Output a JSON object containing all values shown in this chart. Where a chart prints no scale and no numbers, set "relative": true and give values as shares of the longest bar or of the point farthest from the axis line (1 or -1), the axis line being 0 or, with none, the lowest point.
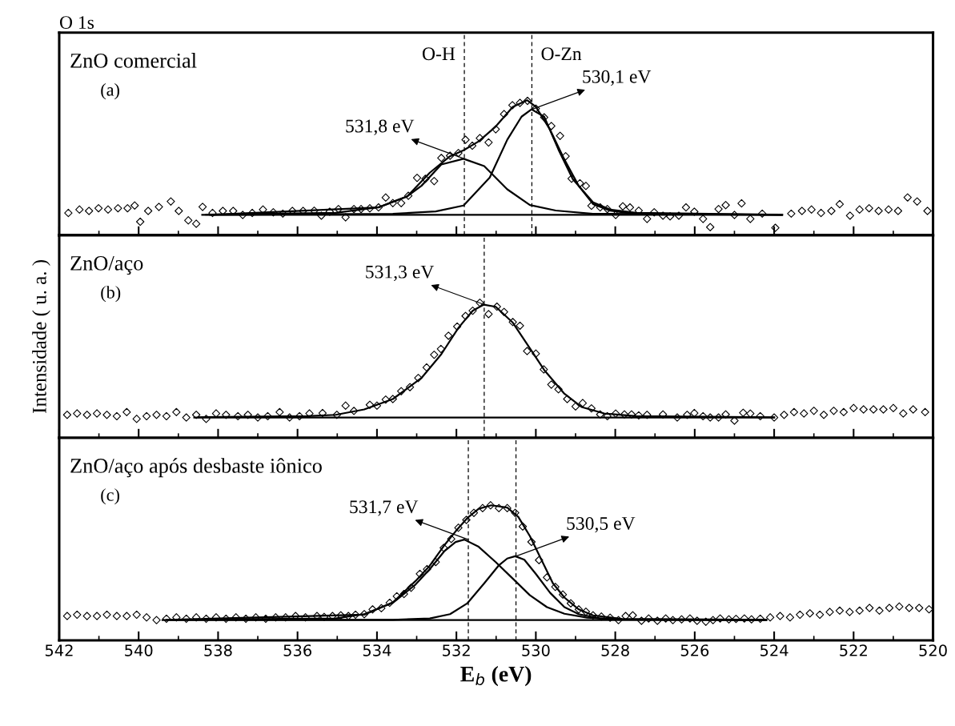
{
  "chart_data": [
    {
      "type": "line",
      "relative": true,
      "title": "O 1s",
      "xlim": [
        542,
        520
      ],
      "xticks": [
        542,
        540,
        538,
        536,
        534,
        532,
        530,
        528,
        526,
        524,
        522,
        520
      ],
      "tick_labels": false,
      "series": [
        {
          "type": "scatter",
          "marker": "diamond",
          "color": "#000000",
          "x": [
            541.77,
            541.49,
            541.25,
            541.01,
            540.77,
            540.52,
            540.28,
            540.1,
            539.96,
            539.76,
            539.49,
            539.19,
            538.99,
            538.75,
            538.55,
            538.39,
            538.14,
            537.88,
            537.62,
            537.38,
            537.14,
            536.87,
            536.61,
            536.37,
            536.13,
            535.86,
            535.58,
            535.4,
            535.19,
            534.97,
            534.79,
            534.58,
            534.4,
            534.18,
            533.96,
            533.78,
            533.6,
            533.39,
            533.21,
            532.99,
            532.78,
            532.56,
            532.38,
            532.16,
            531.95,
            531.77,
            531.6,
            531.41,
            531.19,
            531.01,
            530.8,
            530.59,
            530.4,
            530.21,
            530.0,
            529.79,
            529.61,
            529.39,
            529.25,
            529.1,
            528.89,
            528.74,
            528.6,
            528.38,
            528.2,
            527.99,
            527.81,
            527.63,
            527.41,
            527.2,
            527.02,
            526.8,
            526.62,
            526.4,
            526.22,
            526.01,
            525.79,
            525.61,
            525.4,
            525.22,
            525.0,
            524.82,
            524.6,
            524.3,
            523.97,
            523.57,
            523.3,
            523.06,
            522.82,
            522.56,
            522.35,
            522.09,
            521.85,
            521.61,
            521.37,
            521.12,
            520.88,
            520.64,
            520.4,
            520.14
          ],
          "values": [
            0.165,
            0.19,
            0.18,
            0.2,
            0.19,
            0.2,
            0.2,
            0.22,
            0.1,
            0.18,
            0.21,
            0.25,
            0.18,
            0.11,
            0.085,
            0.21,
            0.165,
            0.18,
            0.18,
            0.15,
            0.165,
            0.19,
            0.17,
            0.16,
            0.18,
            0.18,
            0.182,
            0.145,
            0.174,
            0.194,
            0.133,
            0.194,
            0.194,
            0.199,
            0.206,
            0.279,
            0.238,
            0.238,
            0.292,
            0.425,
            0.418,
            0.401,
            0.572,
            0.589,
            0.609,
            0.707,
            0.663,
            0.719,
            0.687,
            0.785,
            0.897,
            0.963,
            0.98,
            0.995,
            0.938,
            0.873,
            0.809,
            0.736,
            0.585,
            0.419,
            0.385,
            0.365,
            0.218,
            0.206,
            0.194,
            0.15,
            0.214,
            0.206,
            0.182,
            0.121,
            0.17,
            0.145,
            0.14,
            0.145,
            0.206,
            0.174,
            0.121,
            0.06,
            0.194,
            0.223,
            0.15,
            0.236,
            0.121,
            0.16,
            0.055,
            0.16,
            0.18,
            0.19,
            0.165,
            0.18,
            0.23,
            0.145,
            0.19,
            0.2,
            0.18,
            0.19,
            0.18,
            0.28,
            0.25,
            0.18
          ]
        },
        {
          "color": "#000000",
          "x": [
            538.4,
            523.8
          ],
          "values": [
            0.151,
            0.151
          ]
        },
        {
          "color": "#000000",
          "x": [
            538.3,
            535.04,
            533.96,
            533.24,
            532.88,
            532.38,
            531.82,
            531.3,
            530.72,
            530.15,
            529.5,
            528.56,
            523.8
          ],
          "values": [
            0.152,
            0.166,
            0.207,
            0.288,
            0.366,
            0.524,
            0.566,
            0.512,
            0.34,
            0.224,
            0.183,
            0.159,
            0.151
          ]
        },
        {
          "color": "#000000",
          "x": [
            538.2,
            533.6,
            532.52,
            531.82,
            531.16,
            530.72,
            530.36,
            530.11,
            529.79,
            529.43,
            529.07,
            528.56,
            528.13,
            527.48,
            523.8
          ],
          "values": [
            0.151,
            0.159,
            0.176,
            0.22,
            0.427,
            0.707,
            0.878,
            0.932,
            0.878,
            0.634,
            0.415,
            0.244,
            0.19,
            0.166,
            0.151
          ]
        },
        {
          "color": "#000000",
          "x": [
            538.1,
            533.96,
            533.24,
            532.67,
            532.16,
            531.82,
            531.44,
            531.01,
            530.58,
            530.22,
            530.0,
            529.64,
            529.28,
            528.92,
            528.56,
            528.13,
            527.48,
            523.8
          ],
          "values": [
            0.153,
            0.206,
            0.287,
            0.463,
            0.585,
            0.629,
            0.695,
            0.805,
            0.951,
            1.0,
            0.951,
            0.78,
            0.56,
            0.365,
            0.231,
            0.182,
            0.157,
            0.152
          ]
        }
      ],
      "ref_lines": [
        {
          "axis": "x",
          "value": 531.8,
          "label": "O-H",
          "line_style": "dashed"
        },
        {
          "axis": "x",
          "value": 530.1,
          "label": "O-Zn",
          "line_style": "dashed"
        }
      ],
      "annotations": [
        "ZnO comercial",
        "(a)",
        {
          "text": "531,8 eV",
          "x": 531.8,
          "y": 0.566
        },
        {
          "text": "530,1 eV",
          "x": 530.1,
          "y": 0.932
        }
      ]
    },
    {
      "type": "line",
      "relative": true,
      "ylabel": "Intensidade ( u. a. )",
      "xlim": [
        542,
        520
      ],
      "xticks": [
        542,
        540,
        538,
        536,
        534,
        532,
        530,
        528,
        526,
        524,
        522,
        520
      ],
      "tick_labels": false,
      "series": [
        {
          "type": "scatter",
          "marker": "diamond",
          "color": "#000000",
          "x": [
            541.8,
            541.55,
            541.3,
            541.05,
            540.8,
            540.55,
            540.3,
            540.05,
            539.8,
            539.55,
            539.3,
            539.05,
            538.8,
            538.55,
            538.3,
            538.05,
            537.8,
            537.5,
            537.25,
            537.0,
            536.75,
            536.45,
            536.2,
            535.95,
            535.7,
            535.37,
            535.01,
            534.79,
            534.58,
            534.18,
            534.0,
            533.78,
            533.6,
            533.39,
            533.17,
            532.96,
            532.75,
            532.56,
            532.39,
            532.2,
            531.98,
            531.77,
            531.59,
            531.41,
            531.19,
            530.98,
            530.8,
            530.58,
            530.4,
            530.22,
            530.0,
            529.8,
            529.61,
            529.43,
            529.21,
            529.0,
            528.82,
            528.6,
            528.38,
            528.2,
            527.99,
            527.77,
            527.59,
            527.41,
            527.2,
            526.8,
            526.44,
            526.19,
            526.01,
            525.79,
            525.61,
            525.4,
            525.22,
            525.0,
            524.78,
            524.6,
            524.35,
            524.0,
            523.75,
            523.5,
            523.25,
            523.0,
            522.75,
            522.5,
            522.25,
            522.0,
            521.75,
            521.5,
            521.25,
            521.0,
            520.75,
            520.5,
            520.2
          ],
          "values": [
            0.17,
            0.18,
            0.17,
            0.18,
            0.17,
            0.16,
            0.19,
            0.14,
            0.16,
            0.17,
            0.16,
            0.19,
            0.15,
            0.17,
            0.14,
            0.18,
            0.17,
            0.16,
            0.17,
            0.15,
            0.16,
            0.19,
            0.15,
            0.16,
            0.18,
            0.183,
            0.17,
            0.238,
            0.199,
            0.244,
            0.238,
            0.283,
            0.287,
            0.345,
            0.375,
            0.443,
            0.521,
            0.615,
            0.658,
            0.756,
            0.824,
            0.902,
            0.941,
            1.0,
            0.916,
            0.971,
            0.932,
            0.857,
            0.83,
            0.642,
            0.623,
            0.506,
            0.394,
            0.359,
            0.287,
            0.232,
            0.257,
            0.218,
            0.173,
            0.16,
            0.179,
            0.173,
            0.173,
            0.166,
            0.17,
            0.173,
            0.15,
            0.17,
            0.183,
            0.16,
            0.15,
            0.15,
            0.173,
            0.127,
            0.185,
            0.179,
            0.16,
            0.15,
            0.17,
            0.19,
            0.18,
            0.2,
            0.17,
            0.2,
            0.19,
            0.22,
            0.21,
            0.21,
            0.21,
            0.22,
            0.18,
            0.21,
            0.19
          ]
        },
        {
          "color": "#000000",
          "x": [
            538.6,
            524.0
          ],
          "values": [
            0.15,
            0.15
          ]
        },
        {
          "color": "#000000",
          "x": [
            538.5,
            535.76,
            535.04,
            534.32,
            533.6,
            532.88,
            532.38,
            531.95,
            531.59,
            531.31,
            531.01,
            530.58,
            530.14,
            529.79,
            529.28,
            528.85,
            528.28,
            527.48,
            524.0
          ],
          "values": [
            0.152,
            0.16,
            0.17,
            0.21,
            0.287,
            0.443,
            0.619,
            0.814,
            0.941,
            0.986,
            0.97,
            0.853,
            0.658,
            0.502,
            0.326,
            0.228,
            0.18,
            0.16,
            0.151
          ]
        }
      ],
      "ref_lines": [
        {
          "axis": "x",
          "value": 531.3,
          "line_style": "dashed"
        }
      ],
      "annotations": [
        "ZnO/aço",
        "(b)",
        {
          "text": "531,3 eV",
          "x": 531.3,
          "y": 0.986
        }
      ]
    },
    {
      "type": "line",
      "relative": true,
      "xlabel": "E$_{b}$ (eV)",
      "xlim": [
        542,
        520
      ],
      "xticks": [
        542,
        540,
        538,
        536,
        534,
        532,
        530,
        528,
        526,
        524,
        522,
        520
      ],
      "tick_labels": "x",
      "series": [
        {
          "type": "scatter",
          "marker": "diamond",
          "color": "#000000",
          "x": [
            541.8,
            541.55,
            541.3,
            541.05,
            540.8,
            540.55,
            540.3,
            540.05,
            539.8,
            539.55,
            539.3,
            539.05,
            538.8,
            538.55,
            538.3,
            538.05,
            537.8,
            537.55,
            537.3,
            537.05,
            536.8,
            536.55,
            536.3,
            536.05,
            535.8,
            535.51,
            535.33,
            535.12,
            534.91,
            534.72,
            534.54,
            534.32,
            534.11,
            533.89,
            533.68,
            533.5,
            533.32,
            533.14,
            532.92,
            532.74,
            532.52,
            532.32,
            532.13,
            531.95,
            531.75,
            531.56,
            531.34,
            531.14,
            530.93,
            530.72,
            530.52,
            530.33,
            530.11,
            529.92,
            529.72,
            529.51,
            529.32,
            529.12,
            528.92,
            528.74,
            528.56,
            528.35,
            528.13,
            527.92,
            527.74,
            527.56,
            527.34,
            527.16,
            526.94,
            526.73,
            526.55,
            526.33,
            526.12,
            525.94,
            525.72,
            525.54,
            525.36,
            525.14,
            524.96,
            524.75,
            524.57,
            524.35,
            524.1,
            523.85,
            523.6,
            523.35,
            523.1,
            522.85,
            522.6,
            522.35,
            522.1,
            521.85,
            521.6,
            521.35,
            521.1,
            520.85,
            520.6,
            520.35,
            520.1
          ],
          "values": [
            0.18,
            0.19,
            0.18,
            0.18,
            0.19,
            0.18,
            0.18,
            0.19,
            0.17,
            0.15,
            0.16,
            0.17,
            0.16,
            0.17,
            0.16,
            0.17,
            0.16,
            0.17,
            0.16,
            0.17,
            0.16,
            0.17,
            0.17,
            0.18,
            0.17,
            0.18,
            0.173,
            0.18,
            0.185,
            0.18,
            0.19,
            0.194,
            0.229,
            0.238,
            0.278,
            0.326,
            0.343,
            0.39,
            0.492,
            0.527,
            0.58,
            0.685,
            0.751,
            0.834,
            0.892,
            0.944,
            0.979,
            1.0,
            0.979,
            0.979,
            0.944,
            0.843,
            0.729,
            0.594,
            0.466,
            0.396,
            0.339,
            0.274,
            0.229,
            0.212,
            0.185,
            0.176,
            0.168,
            0.15,
            0.18,
            0.185,
            0.145,
            0.162,
            0.145,
            0.162,
            0.15,
            0.155,
            0.162,
            0.145,
            0.138,
            0.15,
            0.162,
            0.155,
            0.159,
            0.162,
            0.155,
            0.16,
            0.17,
            0.18,
            0.17,
            0.19,
            0.2,
            0.19,
            0.21,
            0.22,
            0.21,
            0.22,
            0.24,
            0.22,
            0.24,
            0.25,
            0.24,
            0.24,
            0.23
          ]
        },
        {
          "color": "#000000",
          "x": [
            539.4,
            524.2
          ],
          "values": [
            0.15,
            0.15
          ]
        },
        {
          "color": "#000000",
          "x": [
            539.3,
            535.04,
            534.32,
            533.6,
            533.03,
            532.67,
            532.31,
            532.02,
            531.8,
            531.44,
            531.01,
            530.58,
            530.15,
            529.72,
            529.28,
            528.71,
            527.99,
            524.2
          ],
          "values": [
            0.152,
            0.162,
            0.194,
            0.278,
            0.413,
            0.527,
            0.658,
            0.728,
            0.746,
            0.693,
            0.579,
            0.457,
            0.334,
            0.246,
            0.197,
            0.168,
            0.155,
            0.151
          ]
        },
        {
          "color": "#000000",
          "x": [
            539.2,
            533.6,
            532.67,
            532.16,
            531.73,
            531.3,
            530.94,
            530.72,
            530.52,
            530.29,
            530.0,
            529.64,
            529.28,
            528.92,
            528.42,
            527.84,
            524.2
          ],
          "values": [
            0.151,
            0.152,
            0.162,
            0.194,
            0.273,
            0.422,
            0.553,
            0.606,
            0.623,
            0.597,
            0.492,
            0.352,
            0.246,
            0.194,
            0.164,
            0.154,
            0.151
          ]
        },
        {
          "color": "#000000",
          "x": [
            539.1,
            534.32,
            533.6,
            533.03,
            532.67,
            532.31,
            532.02,
            531.73,
            531.44,
            531.12,
            530.72,
            530.44,
            530.15,
            529.86,
            529.57,
            529.28,
            528.92,
            528.56,
            527.84,
            524.2
          ],
          "values": [
            0.153,
            0.19,
            0.281,
            0.439,
            0.553,
            0.702,
            0.807,
            0.904,
            0.974,
            1.0,
            0.983,
            0.913,
            0.772,
            0.597,
            0.422,
            0.317,
            0.229,
            0.185,
            0.159,
            0.152
          ]
        }
      ],
      "ref_lines": [
        {
          "axis": "x",
          "value": 531.7,
          "line_style": "dashed"
        },
        {
          "axis": "x",
          "value": 530.5,
          "line_style": "dashed"
        }
      ],
      "annotations": [
        "ZnO/aço após desbaste iônico",
        "(c)",
        {
          "text": "531,7 eV",
          "x": 531.7,
          "y": 0.746
        },
        {
          "text": "530,5 eV",
          "x": 530.5,
          "y": 0.623
        }
      ]
    }
  ]
}
